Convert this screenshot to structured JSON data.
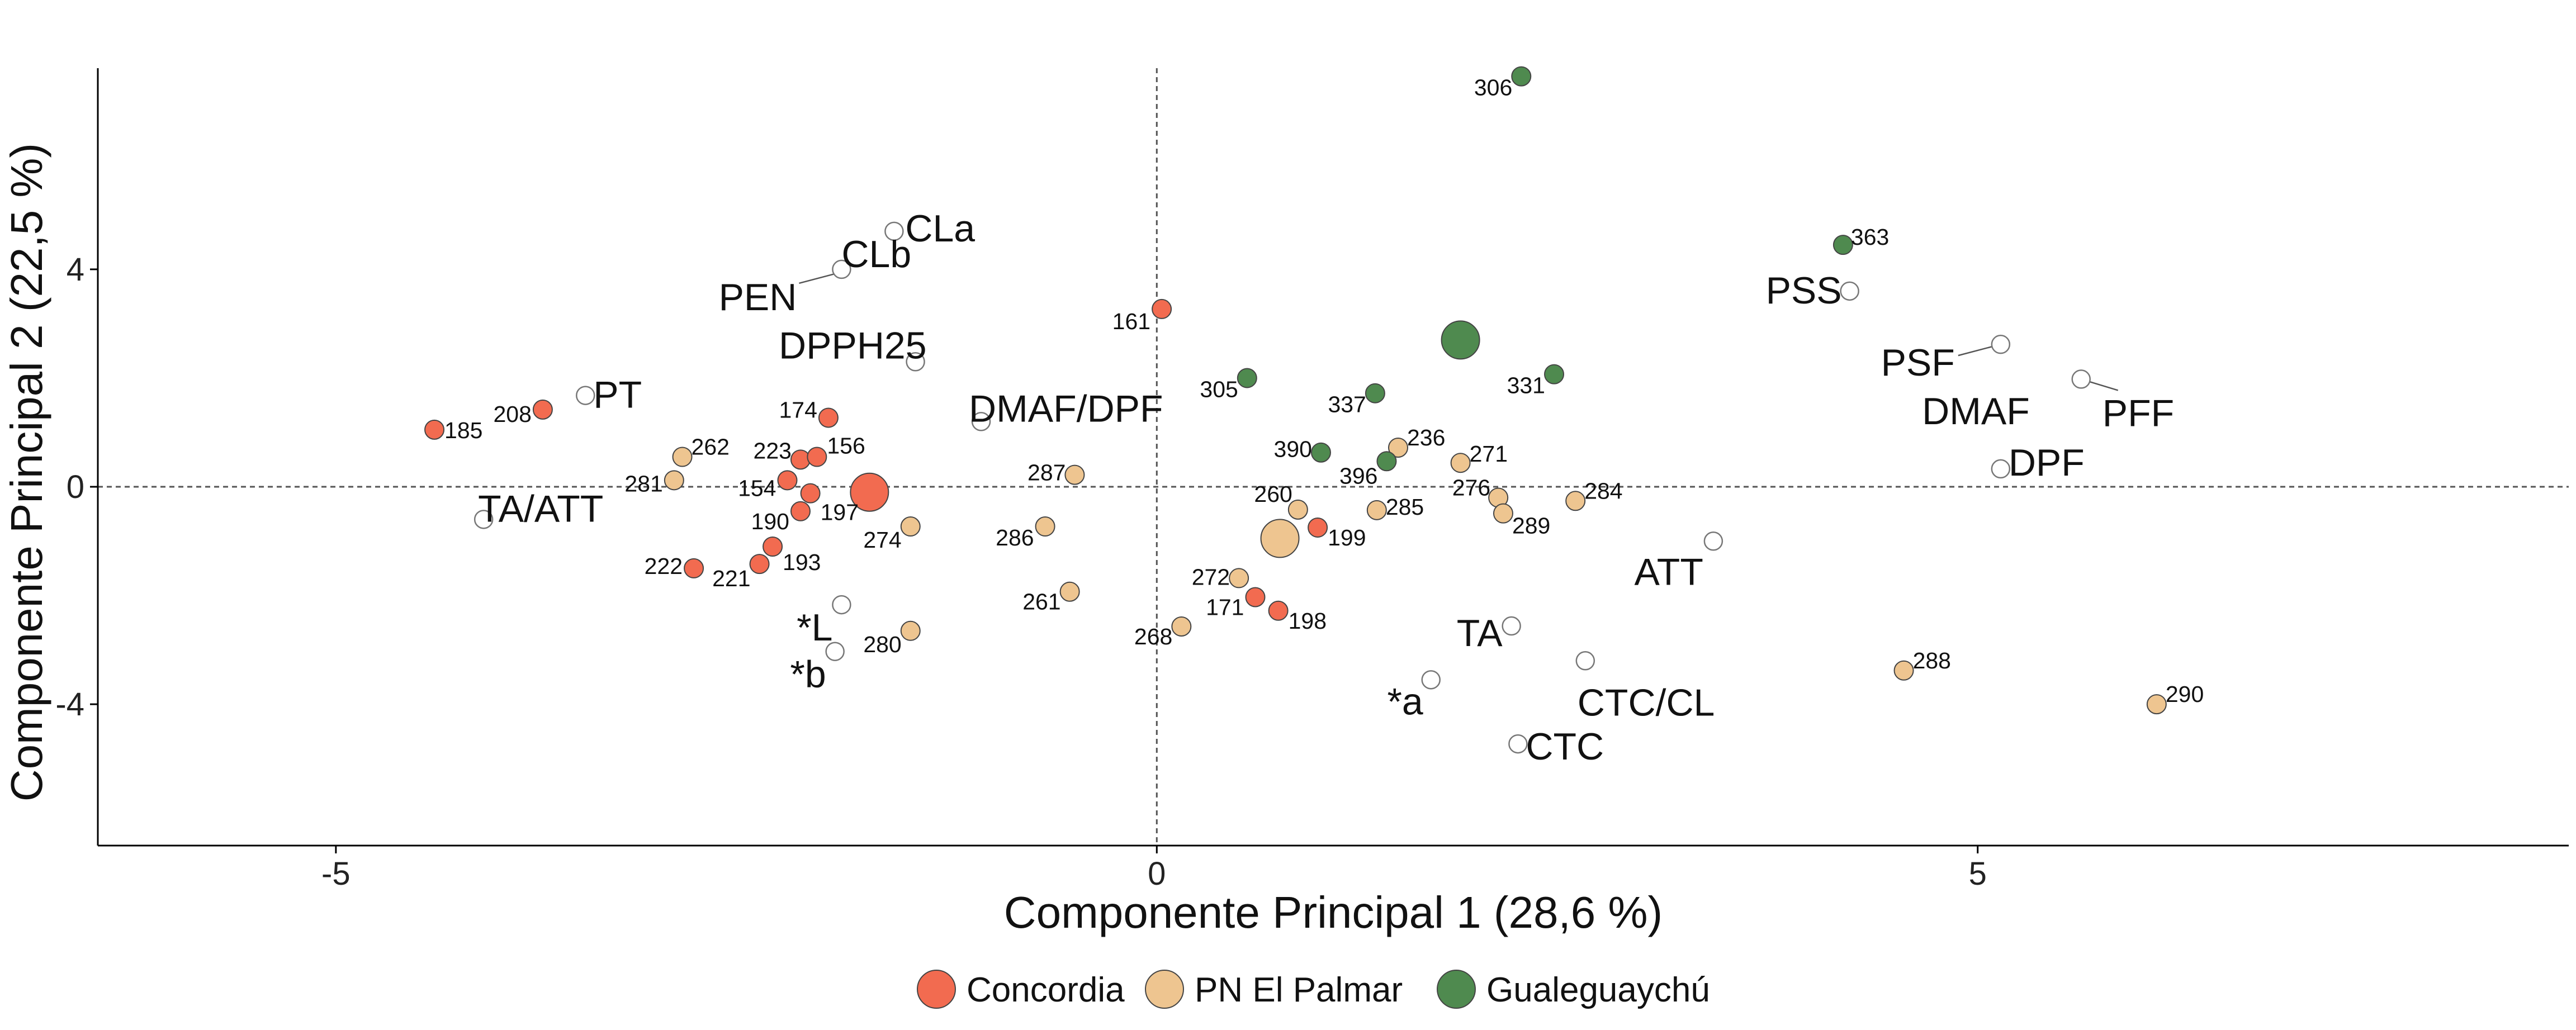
{
  "chart_data": {
    "type": "scatter",
    "subtype": "pca-biplot",
    "title": "",
    "xlabel": "Componente Principal 1 (28,6 %)",
    "ylabel": "Componente Principal 2 (22,5 %)",
    "xlim": [
      -6.45,
      8.6
    ],
    "ylim": [
      -6.6,
      7.7
    ],
    "xticks": [
      -5,
      0,
      5
    ],
    "yticks": [
      -4,
      0,
      4
    ],
    "reference_lines": {
      "x": 0,
      "y": 0
    },
    "legend": {
      "position": "bottom",
      "entries": [
        {
          "name": "Concordia",
          "color": "#F26B50"
        },
        {
          "name": "PN El Palmar",
          "color": "#EEC590"
        },
        {
          "name": "Gualeguaychú",
          "color": "#4F8A4F"
        }
      ]
    },
    "groups": [
      {
        "name": "Concordia",
        "color": "#F26B50",
        "centroid": {
          "x": -1.75,
          "y": -0.1
        },
        "points": [
          {
            "label": "185",
            "x": -4.4,
            "y": 1.05
          },
          {
            "label": "208",
            "x": -3.74,
            "y": 1.42
          },
          {
            "label": "174",
            "x": -2.0,
            "y": 1.27
          },
          {
            "label": "223",
            "x": -2.17,
            "y": 0.5
          },
          {
            "label": "156",
            "x": -2.07,
            "y": 0.55
          },
          {
            "label": "154",
            "x": -2.25,
            "y": 0.12
          },
          {
            "label": "197",
            "x": -2.11,
            "y": -0.12
          },
          {
            "label": "190",
            "x": -2.17,
            "y": -0.45
          },
          {
            "label": "193",
            "x": -2.34,
            "y": -1.1
          },
          {
            "label": "221",
            "x": -2.42,
            "y": -1.42
          },
          {
            "label": "222",
            "x": -2.82,
            "y": -1.5
          },
          {
            "label": "161",
            "x": 0.03,
            "y": 3.27
          },
          {
            "label": "199",
            "x": 0.98,
            "y": -0.75
          },
          {
            "label": "171",
            "x": 0.6,
            "y": -2.03
          },
          {
            "label": "198",
            "x": 0.74,
            "y": -2.28
          }
        ]
      },
      {
        "name": "PN El Palmar",
        "color": "#EEC590",
        "centroid": {
          "x": 0.75,
          "y": -0.95
        },
        "points": [
          {
            "label": "262",
            "x": -2.89,
            "y": 0.55
          },
          {
            "label": "281",
            "x": -2.94,
            "y": 0.12
          },
          {
            "label": "274",
            "x": -1.5,
            "y": -0.73
          },
          {
            "label": "280",
            "x": -1.5,
            "y": -2.65
          },
          {
            "label": "287",
            "x": -0.5,
            "y": 0.22
          },
          {
            "label": "286",
            "x": -0.68,
            "y": -0.73
          },
          {
            "label": "261",
            "x": -0.53,
            "y": -1.93
          },
          {
            "label": "260",
            "x": 0.86,
            "y": -0.42
          },
          {
            "label": "272",
            "x": 0.5,
            "y": -1.68
          },
          {
            "label": "268",
            "x": 0.15,
            "y": -2.57
          },
          {
            "label": "236",
            "x": 1.47,
            "y": 0.72
          },
          {
            "label": "285",
            "x": 1.34,
            "y": -0.43
          },
          {
            "label": "271",
            "x": 1.85,
            "y": 0.44
          },
          {
            "label": "276",
            "x": 2.08,
            "y": -0.2
          },
          {
            "label": "289",
            "x": 2.11,
            "y": -0.49
          },
          {
            "label": "284",
            "x": 2.55,
            "y": -0.26
          },
          {
            "label": "288",
            "x": 4.55,
            "y": -3.38
          },
          {
            "label": "290",
            "x": 6.09,
            "y": -4.0
          }
        ]
      },
      {
        "name": "Gualeguaychú",
        "color": "#4F8A4F",
        "centroid": {
          "x": 1.85,
          "y": 2.7
        },
        "points": [
          {
            "label": "306",
            "x": 2.22,
            "y": 7.55
          },
          {
            "label": "363",
            "x": 4.18,
            "y": 4.45
          },
          {
            "label": "305",
            "x": 0.55,
            "y": 2.0
          },
          {
            "label": "337",
            "x": 1.33,
            "y": 1.72
          },
          {
            "label": "331",
            "x": 2.42,
            "y": 2.07
          },
          {
            "label": "390",
            "x": 1.0,
            "y": 0.63
          },
          {
            "label": "396",
            "x": 1.4,
            "y": 0.47
          }
        ]
      }
    ],
    "variables": [
      {
        "label": "CLa",
        "x": -1.6,
        "y": 4.7
      },
      {
        "label": "CLb",
        "x": -1.92,
        "y": 4.0
      },
      {
        "label": "PEN",
        "x": -1.92,
        "y": 3.95
      },
      {
        "label": "DPPH25",
        "x": -1.47,
        "y": 2.3
      },
      {
        "label": "PT",
        "x": -3.48,
        "y": 1.68
      },
      {
        "label": "DMAF/DPF",
        "x": -1.07,
        "y": 1.2
      },
      {
        "label": "TA/ATT",
        "x": -4.1,
        "y": -0.6
      },
      {
        "label": "*L",
        "x": -1.92,
        "y": -2.17
      },
      {
        "label": "*b",
        "x": -1.96,
        "y": -3.03
      },
      {
        "label": "PSS",
        "x": 4.22,
        "y": 3.6
      },
      {
        "label": "PSF",
        "x": 5.14,
        "y": 2.62
      },
      {
        "label": "DMAF",
        "x": 5.14,
        "y": 2.57
      },
      {
        "label": "PFF",
        "x": 5.63,
        "y": 1.98
      },
      {
        "label": "DPF",
        "x": 5.14,
        "y": 0.33
      },
      {
        "label": "ATT",
        "x": 3.39,
        "y": -1.0
      },
      {
        "label": "TA",
        "x": 2.16,
        "y": -2.56
      },
      {
        "label": "*a",
        "x": 1.67,
        "y": -3.55
      },
      {
        "label": "CTC/CL",
        "x": 2.61,
        "y": -3.2
      },
      {
        "label": "CTC",
        "x": 2.2,
        "y": -4.73
      }
    ]
  }
}
